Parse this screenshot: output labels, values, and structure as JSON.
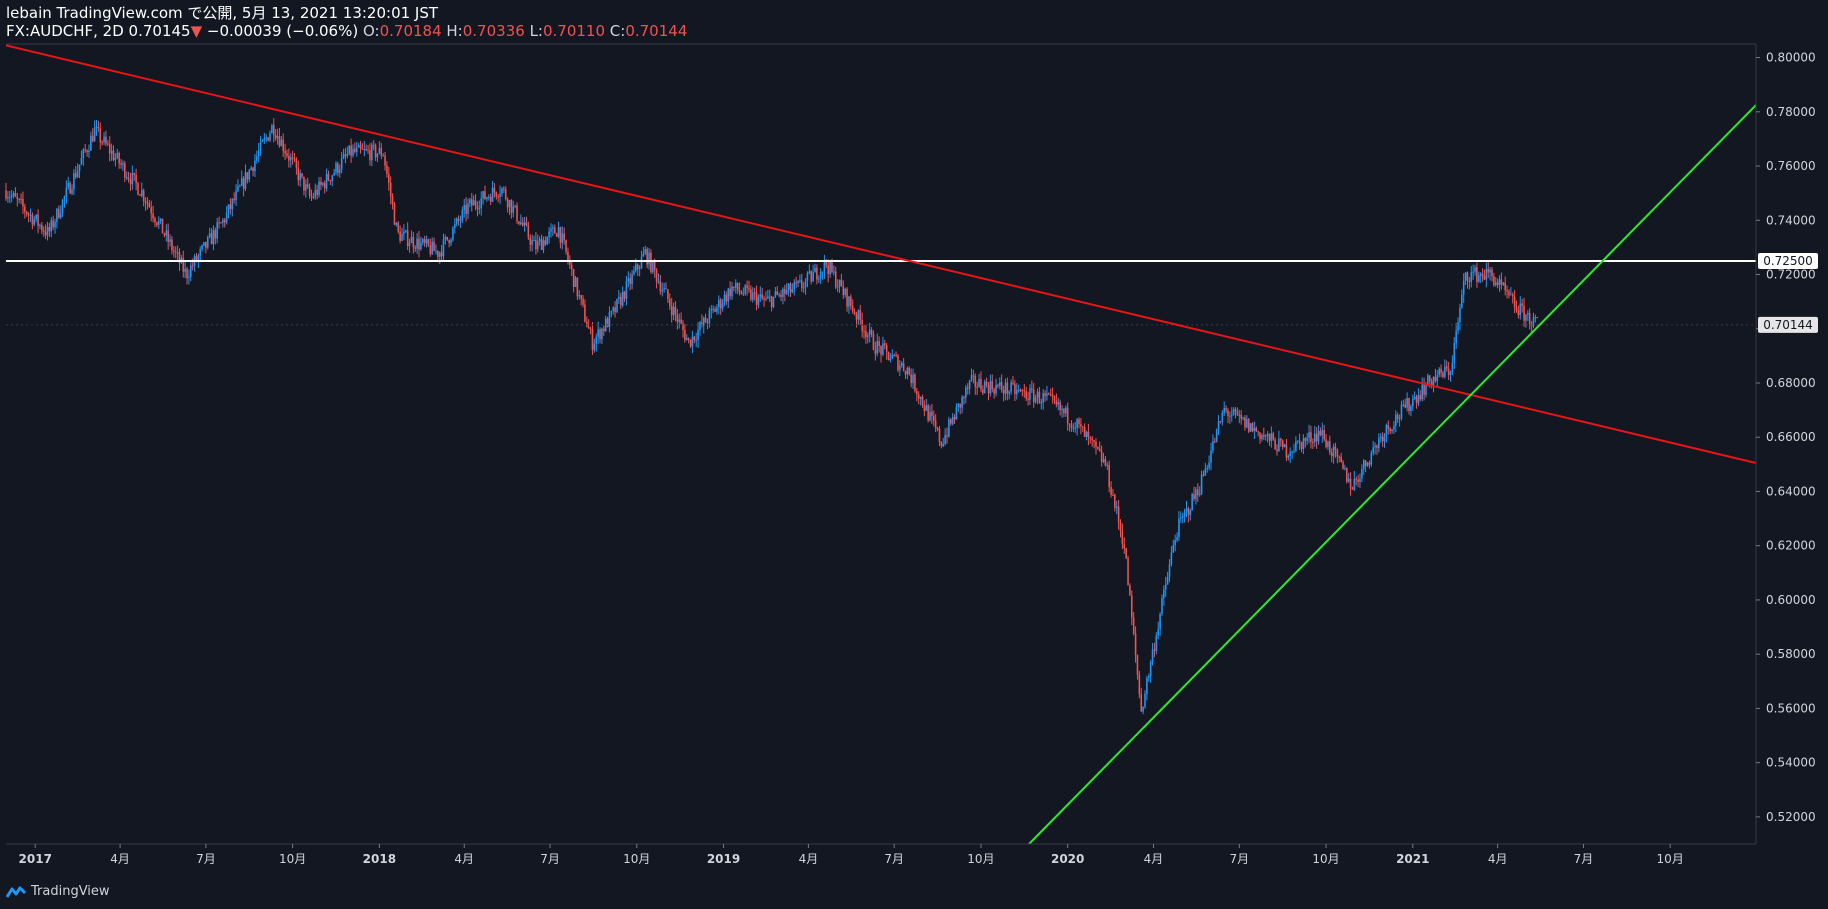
{
  "header": {
    "line1": "lebain TradingView.com で公開, 5月 13, 2021 13:20:01 JST",
    "symbol": "FX:AUDCHF, 2D",
    "last": "0.70145",
    "arrow": "▼",
    "change": "−0.00039 (−0.06%)",
    "o_label": "O:",
    "o_value": "0.70184",
    "h_label": "H:",
    "h_value": "0.70336",
    "l_label": "L:",
    "l_value": "0.70110",
    "c_label": "C:",
    "c_value": "0.70144"
  },
  "footer": {
    "brand": "TradingView"
  },
  "colors": {
    "bg": "#131722",
    "up": "#2196f3",
    "down": "#ef5350",
    "grid": "#2a2e39",
    "resistance": "#e81515",
    "support": "#2ee82e",
    "level": "#ffffff"
  },
  "chart_data": {
    "type": "line",
    "series": [
      {
        "x": [
          "2016-12-01",
          "2017-01-15",
          "2017-03-05",
          "2017-04-25",
          "2017-06-10",
          "2017-07-20",
          "2017-09-10",
          "2017-10-20",
          "2017-12-01",
          "2018-01-05",
          "2018-01-20",
          "2018-03-05",
          "2018-04-05",
          "2018-05-10",
          "2018-06-15",
          "2018-07-10",
          "2018-08-15",
          "2018-09-05",
          "2018-10-10",
          "2018-11-25",
          "2019-01-10",
          "2019-02-15",
          "2019-03-25",
          "2019-04-20",
          "2019-06-10",
          "2019-07-15",
          "2019-08-20",
          "2019-09-20",
          "2019-10-25",
          "2019-12-10",
          "2020-01-10",
          "2020-02-10",
          "2020-03-01",
          "2020-03-19",
          "2020-04-25",
          "2020-05-20",
          "2020-06-15",
          "2020-08-20",
          "2020-09-25",
          "2020-10-29",
          "2020-12-01",
          "2021-01-20",
          "2021-02-10",
          "2021-02-26",
          "2021-03-25",
          "2021-04-20",
          "2021-05-13"
        ],
        "values": [
          0.751,
          0.735,
          0.773,
          0.75,
          0.72,
          0.74,
          0.775,
          0.748,
          0.765,
          0.765,
          0.735,
          0.728,
          0.745,
          0.752,
          0.73,
          0.737,
          0.695,
          0.705,
          0.728,
          0.695,
          0.715,
          0.71,
          0.716,
          0.724,
          0.694,
          0.685,
          0.658,
          0.68,
          0.678,
          0.674,
          0.665,
          0.65,
          0.62,
          0.559,
          0.625,
          0.642,
          0.67,
          0.655,
          0.662,
          0.642,
          0.662,
          0.681,
          0.685,
          0.72,
          0.72,
          0.708,
          0.7014
        ]
      }
    ],
    "y_ticks": [
      "0.80000",
      "0.78000",
      "0.76000",
      "0.74000",
      "0.72000",
      "0.70000",
      "0.68000",
      "0.66000",
      "0.64000",
      "0.62000",
      "0.60000",
      "0.58000",
      "0.56000",
      "0.54000",
      "0.52000"
    ],
    "x_ticks": [
      "2017",
      "4月",
      "7月",
      "10月",
      "2018",
      "4月",
      "7月",
      "10月",
      "2019",
      "4月",
      "7月",
      "10月",
      "2020",
      "4月",
      "7月",
      "10月",
      "2021",
      "4月",
      "7月",
      "10月"
    ],
    "ylim": [
      0.51,
      0.805
    ],
    "xlim": [
      "2016-12-01",
      "2021-12-31"
    ],
    "level_line": {
      "value": 0.725,
      "label": "0.72500"
    },
    "last_price": {
      "value": 0.70144,
      "label": "0.70144"
    },
    "resistance_line": {
      "from": [
        "2016-12-01",
        0.8045
      ],
      "to": [
        "2021-12-31",
        0.6505
      ]
    },
    "support_line": {
      "from": [
        "2019-11-21",
        0.51
      ],
      "to": [
        "2021-12-31",
        0.7825
      ]
    }
  }
}
